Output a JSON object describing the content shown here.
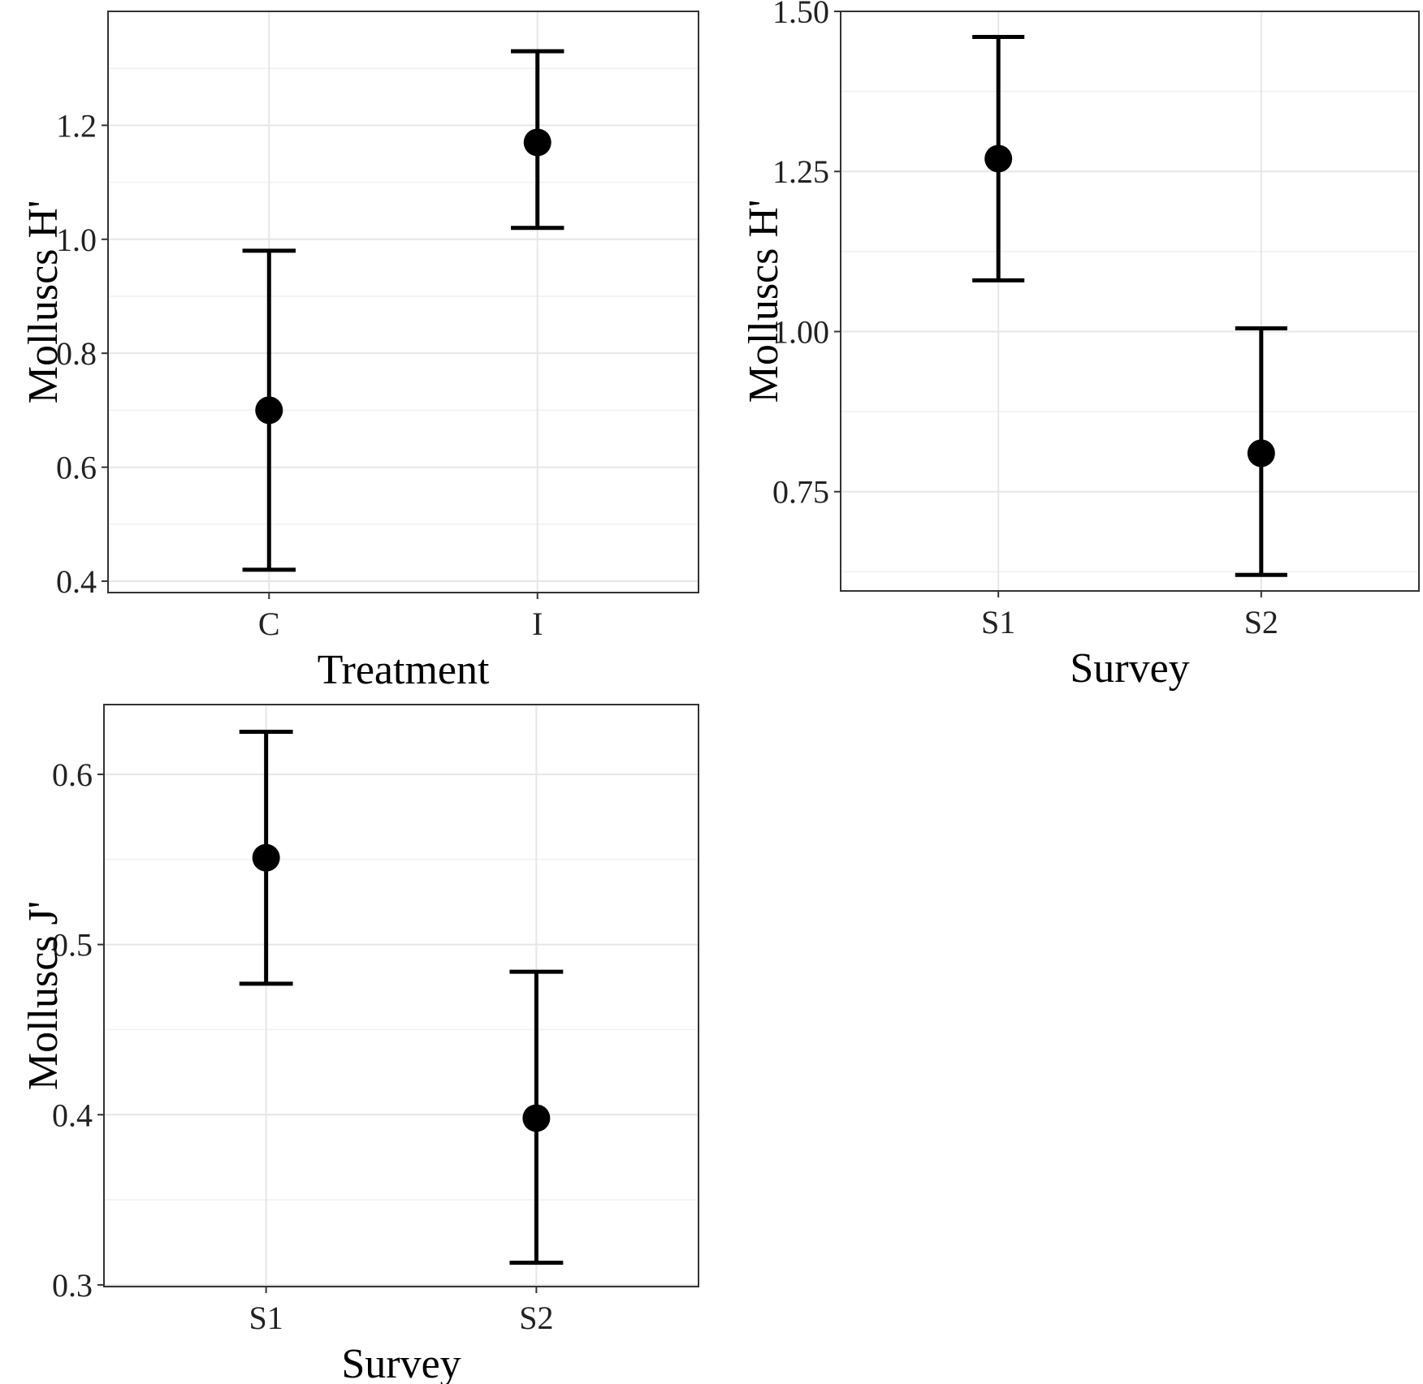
{
  "chart_data": [
    {
      "type": "pointrange",
      "title": "",
      "xlabel": "Treatment",
      "ylabel": "Molluscs H'",
      "categories": [
        "C",
        "I"
      ],
      "values": [
        0.7,
        1.17
      ],
      "lower": [
        0.42,
        1.02
      ],
      "upper": [
        0.98,
        1.33
      ],
      "ylim": [
        0.38,
        1.4
      ],
      "yticks": [
        0.4,
        0.6,
        0.8,
        1.0,
        1.2
      ],
      "ytick_labels": [
        "0.4",
        "0.6",
        "0.8",
        "1.0",
        "1.2"
      ],
      "grid": true
    },
    {
      "type": "pointrange",
      "title": "",
      "xlabel": "Survey",
      "ylabel": "Molluscs H'",
      "categories": [
        "S1",
        "S2"
      ],
      "values": [
        1.27,
        0.81
      ],
      "lower": [
        1.08,
        0.62
      ],
      "upper": [
        1.46,
        1.005
      ],
      "ylim": [
        0.595,
        1.5
      ],
      "yticks": [
        0.75,
        1.0,
        1.25,
        1.5
      ],
      "ytick_labels": [
        "0.75",
        "1.00",
        "1.25",
        "1.50"
      ],
      "grid": true
    },
    {
      "type": "pointrange",
      "title": "",
      "xlabel": "Survey",
      "ylabel": "Molluscs J'",
      "categories": [
        "S1",
        "S2"
      ],
      "values": [
        0.551,
        0.398
      ],
      "lower": [
        0.477,
        0.313
      ],
      "upper": [
        0.625,
        0.484
      ],
      "ylim": [
        0.299,
        0.641
      ],
      "yticks": [
        0.3,
        0.4,
        0.5,
        0.6
      ],
      "ytick_labels": [
        "0.3",
        "0.4",
        "0.5",
        "0.6"
      ],
      "grid": true
    }
  ]
}
